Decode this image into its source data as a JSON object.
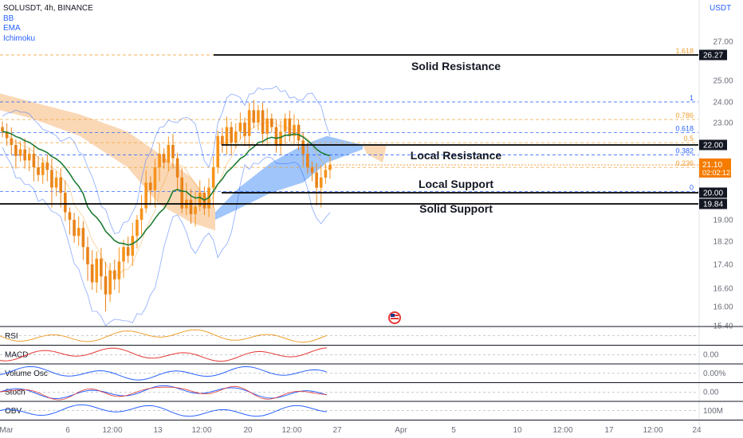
{
  "header": {
    "symbol_line": "SOLUSDT, 4h, BINANCE",
    "indicators": [
      "BB",
      "EMA",
      "Ichimoku"
    ],
    "currency": "USDT"
  },
  "colors": {
    "up_candle": "#f7931a",
    "down_candle": "#e8831a",
    "ema": "#1e7b34",
    "bb": "#2962ff",
    "ichimoku_bull_cloud": "#7fb2f8",
    "ichimoku_bear_cloud": "#f8c38f",
    "fib_blue": "#2962ff",
    "fib_orange": "#f0a030",
    "level_line": "#000000",
    "last_price_badge": "#f57c00"
  },
  "chart_data": {
    "type": "candlestick",
    "y_axis": {
      "ticks": [
        "27.00",
        "25.00",
        "24.00",
        "23.00",
        "19.00",
        "18.20",
        "17.40",
        "16.60",
        "16.00",
        "15.40"
      ],
      "range": [
        15.3,
        28.0
      ]
    },
    "x_axis": {
      "ticks": [
        "Mar",
        "6",
        "12:00",
        "13",
        "12:00",
        "20",
        "12:00",
        "27",
        "Apr",
        "5",
        "10",
        "12:00",
        "17",
        "12:00",
        "24"
      ]
    },
    "horizontal_levels": [
      {
        "label": "Solid Resistance",
        "price": 26.27,
        "badge": "26.27"
      },
      {
        "label": "Local Resistance",
        "price": 22.0,
        "badge": "22.00"
      },
      {
        "label": "Local Support",
        "price": 20.0,
        "badge": "20.00"
      },
      {
        "label": "Solid Support",
        "price": 19.84,
        "badge": "19.84"
      }
    ],
    "fibonacci": [
      {
        "ratio": "1.618",
        "price": 26.27
      },
      {
        "ratio": "1",
        "price": 24.0
      },
      {
        "ratio": "0.786",
        "price": 23.15
      },
      {
        "ratio": "0.618",
        "price": 22.55
      },
      {
        "ratio": "0.5",
        "price": 22.1
      },
      {
        "ratio": "0.382",
        "price": 21.55
      },
      {
        "ratio": "0.236",
        "price": 21.0
      },
      {
        "ratio": "0",
        "price": 20.05
      }
    ],
    "last_price": {
      "value": "21.10",
      "countdown": "02:02:12"
    },
    "candle_closes": [
      22.6,
      22.3,
      22.0,
      21.5,
      21.8,
      21.3,
      21.6,
      21.0,
      20.7,
      21.2,
      20.9,
      20.2,
      20.6,
      20.0,
      19.4,
      19.0,
      18.4,
      18.7,
      18.0,
      17.4,
      16.8,
      17.6,
      17.0,
      16.4,
      17.2,
      16.9,
      17.5,
      18.0,
      17.7,
      18.4,
      19.0,
      19.6,
      20.4,
      20.1,
      21.0,
      21.6,
      21.2,
      22.0,
      21.4,
      20.6,
      19.6,
      19.9,
      19.3,
      19.7,
      20.0,
      19.6,
      20.2,
      21.0,
      22.4,
      22.0,
      22.8,
      22.1,
      22.6,
      23.0,
      22.4,
      23.6,
      23.0,
      23.6,
      22.5,
      23.2,
      22.8,
      22.0,
      22.6,
      23.2,
      22.4,
      22.9,
      22.2,
      21.6,
      21.0,
      20.8,
      20.2,
      20.6,
      20.9,
      21.1
    ],
    "panes": [
      {
        "name": "RSI",
        "value": ""
      },
      {
        "name": "MACD",
        "value": "0.00"
      },
      {
        "name": "Volume Osc",
        "value": "0.00%"
      },
      {
        "name": "Stoch",
        "value": "0.00"
      },
      {
        "name": "OBV",
        "value": "100M"
      }
    ]
  }
}
